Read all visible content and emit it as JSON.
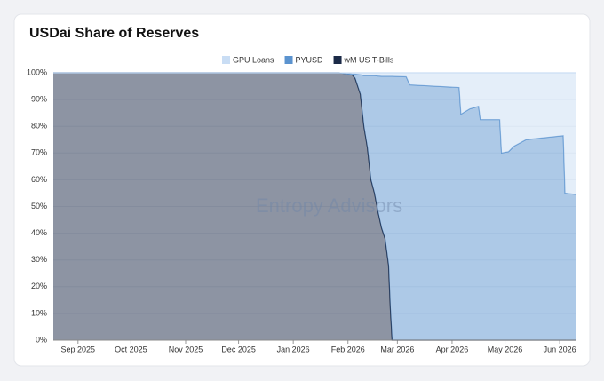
{
  "chart_data": {
    "type": "stacked-area",
    "title": "USDai Share of Reserves",
    "watermark": "Entropy Advisors",
    "x": [
      -14,
      148,
      155,
      157,
      160,
      162,
      164,
      166,
      168,
      170,
      172,
      174,
      176,
      177,
      178,
      186,
      188,
      202,
      216,
      217,
      222,
      227,
      228,
      239,
      240,
      244,
      247,
      254,
      275,
      276,
      282
    ],
    "series": [
      {
        "name": "GPU Loans",
        "color": "#c9ddf4",
        "values": [
          0,
          0,
          0.5,
          0.5,
          0.7,
          1,
          1,
          1,
          1,
          1.2,
          1.3,
          1.3,
          1.3,
          1.3,
          1.3,
          1.5,
          4.5,
          5,
          5.5,
          15.5,
          13.5,
          12.5,
          17.5,
          17.5,
          30,
          29.5,
          27.5,
          25,
          23.5,
          45,
          45.5
        ]
      },
      {
        "name": "PYUSD",
        "color": "#5b93cf",
        "values": [
          0,
          0,
          0,
          1.5,
          7.3,
          19,
          27,
          39,
          44,
          50.8,
          56.7,
          60.7,
          70.7,
          86.7,
          98.7,
          98.5,
          95.5,
          95,
          94.5,
          84.5,
          86.5,
          87.5,
          82.5,
          82.5,
          70,
          70.5,
          72.5,
          75,
          76.5,
          55,
          54.5
        ]
      },
      {
        "name": "wM US T-Bills",
        "color": "#1b2a47",
        "values": [
          100,
          100,
          99.5,
          98,
          92,
          80,
          72,
          60,
          55,
          48,
          42,
          38,
          28,
          12,
          0,
          0,
          0,
          0,
          0,
          0,
          0,
          0,
          0,
          0,
          0,
          0,
          0,
          0,
          0,
          0,
          0
        ]
      }
    ],
    "xlim": [
      -14,
      282
    ],
    "xticks": [
      {
        "value": 0,
        "label": "Sep 2025"
      },
      {
        "value": 30,
        "label": "Oct 2025"
      },
      {
        "value": 61,
        "label": "Nov 2025"
      },
      {
        "value": 91,
        "label": "Dec 2025"
      },
      {
        "value": 122,
        "label": "Jan 2026"
      },
      {
        "value": 153,
        "label": "Feb 2026"
      },
      {
        "value": 181,
        "label": "Mar 2026"
      },
      {
        "value": 212,
        "label": "Apr 2026"
      },
      {
        "value": 242,
        "label": "May 2026"
      },
      {
        "value": 273,
        "label": "Jun 2026"
      }
    ],
    "ylim": [
      0,
      100
    ],
    "yticks": [
      {
        "value": 0,
        "label": "0%"
      },
      {
        "value": 10,
        "label": "10%"
      },
      {
        "value": 20,
        "label": "20%"
      },
      {
        "value": 30,
        "label": "30%"
      },
      {
        "value": 40,
        "label": "40%"
      },
      {
        "value": 50,
        "label": "50%"
      },
      {
        "value": 60,
        "label": "60%"
      },
      {
        "value": 70,
        "label": "70%"
      },
      {
        "value": 80,
        "label": "80%"
      },
      {
        "value": 90,
        "label": "90%"
      },
      {
        "value": 100,
        "label": "100%"
      }
    ],
    "grid": true
  }
}
